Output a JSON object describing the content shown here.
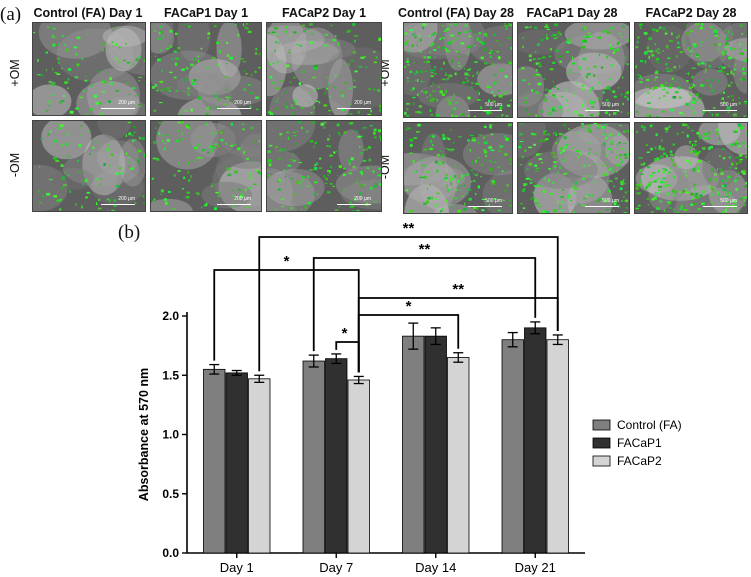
{
  "figure": {
    "panel_a_label": "(a)",
    "panel_b_label": "(b)",
    "left_group": {
      "columns": [
        "Control (FA) Day 1",
        "FACaP1 Day 1",
        "FACaP2 Day 1"
      ],
      "rows": [
        "+OM",
        "-OM"
      ],
      "scale_bar": "200 µm"
    },
    "right_group": {
      "columns": [
        "Control (FA) Day 28",
        "FACaP1 Day 28",
        "FACaP2 Day 28"
      ],
      "rows": [
        "+OM",
        "-OM"
      ],
      "scale_bar": "500 µm"
    }
  },
  "chart_data": {
    "type": "bar",
    "title": "",
    "xlabel": "",
    "ylabel": "Absorbance at 570 nm",
    "categories": [
      "Day 1",
      "Day 7",
      "Day 14",
      "Day 21"
    ],
    "ylim": [
      0,
      2.0
    ],
    "yticks": [
      "0.0",
      "0.5",
      "1.0",
      "1.5",
      "2.0"
    ],
    "grid": false,
    "legend_position": "right",
    "series": [
      {
        "name": "Control (FA)",
        "color": "#7f7f7f",
        "values": [
          1.55,
          1.62,
          1.83,
          1.8
        ],
        "errors": [
          0.04,
          0.05,
          0.11,
          0.06
        ]
      },
      {
        "name": "FACaP1",
        "color": "#303030",
        "values": [
          1.52,
          1.64,
          1.83,
          1.9
        ],
        "errors": [
          0.02,
          0.04,
          0.07,
          0.05
        ]
      },
      {
        "name": "FACaP2",
        "color": "#d4d4d4",
        "values": [
          1.47,
          1.46,
          1.65,
          1.8
        ],
        "errors": [
          0.03,
          0.03,
          0.04,
          0.04
        ]
      }
    ],
    "significance": [
      {
        "label": "**",
        "from": {
          "category": "Day 1",
          "series": "FACaP2"
        },
        "to": {
          "category": "Day 21",
          "series": "FACaP2"
        }
      },
      {
        "label": "*",
        "from": {
          "category": "Day 1",
          "series": "Control (FA)"
        },
        "to": {
          "category": "Day 7",
          "series": "FACaP2"
        }
      },
      {
        "label": "**",
        "from": {
          "category": "Day 7",
          "series": "Control (FA)"
        },
        "to": {
          "category": "Day 21",
          "series": "FACaP1"
        }
      },
      {
        "label": "**",
        "from": {
          "category": "Day 7",
          "series": "FACaP2"
        },
        "to": {
          "category": "Day 21",
          "series": "FACaP2"
        }
      },
      {
        "label": "*",
        "from": {
          "category": "Day 7",
          "series": "FACaP2"
        },
        "to": {
          "category": "Day 14",
          "series": "FACaP2"
        }
      },
      {
        "label": "*",
        "from": {
          "category": "Day 7",
          "series": "FACaP1"
        },
        "to": {
          "category": "Day 7",
          "series": "FACaP2"
        }
      }
    ]
  }
}
